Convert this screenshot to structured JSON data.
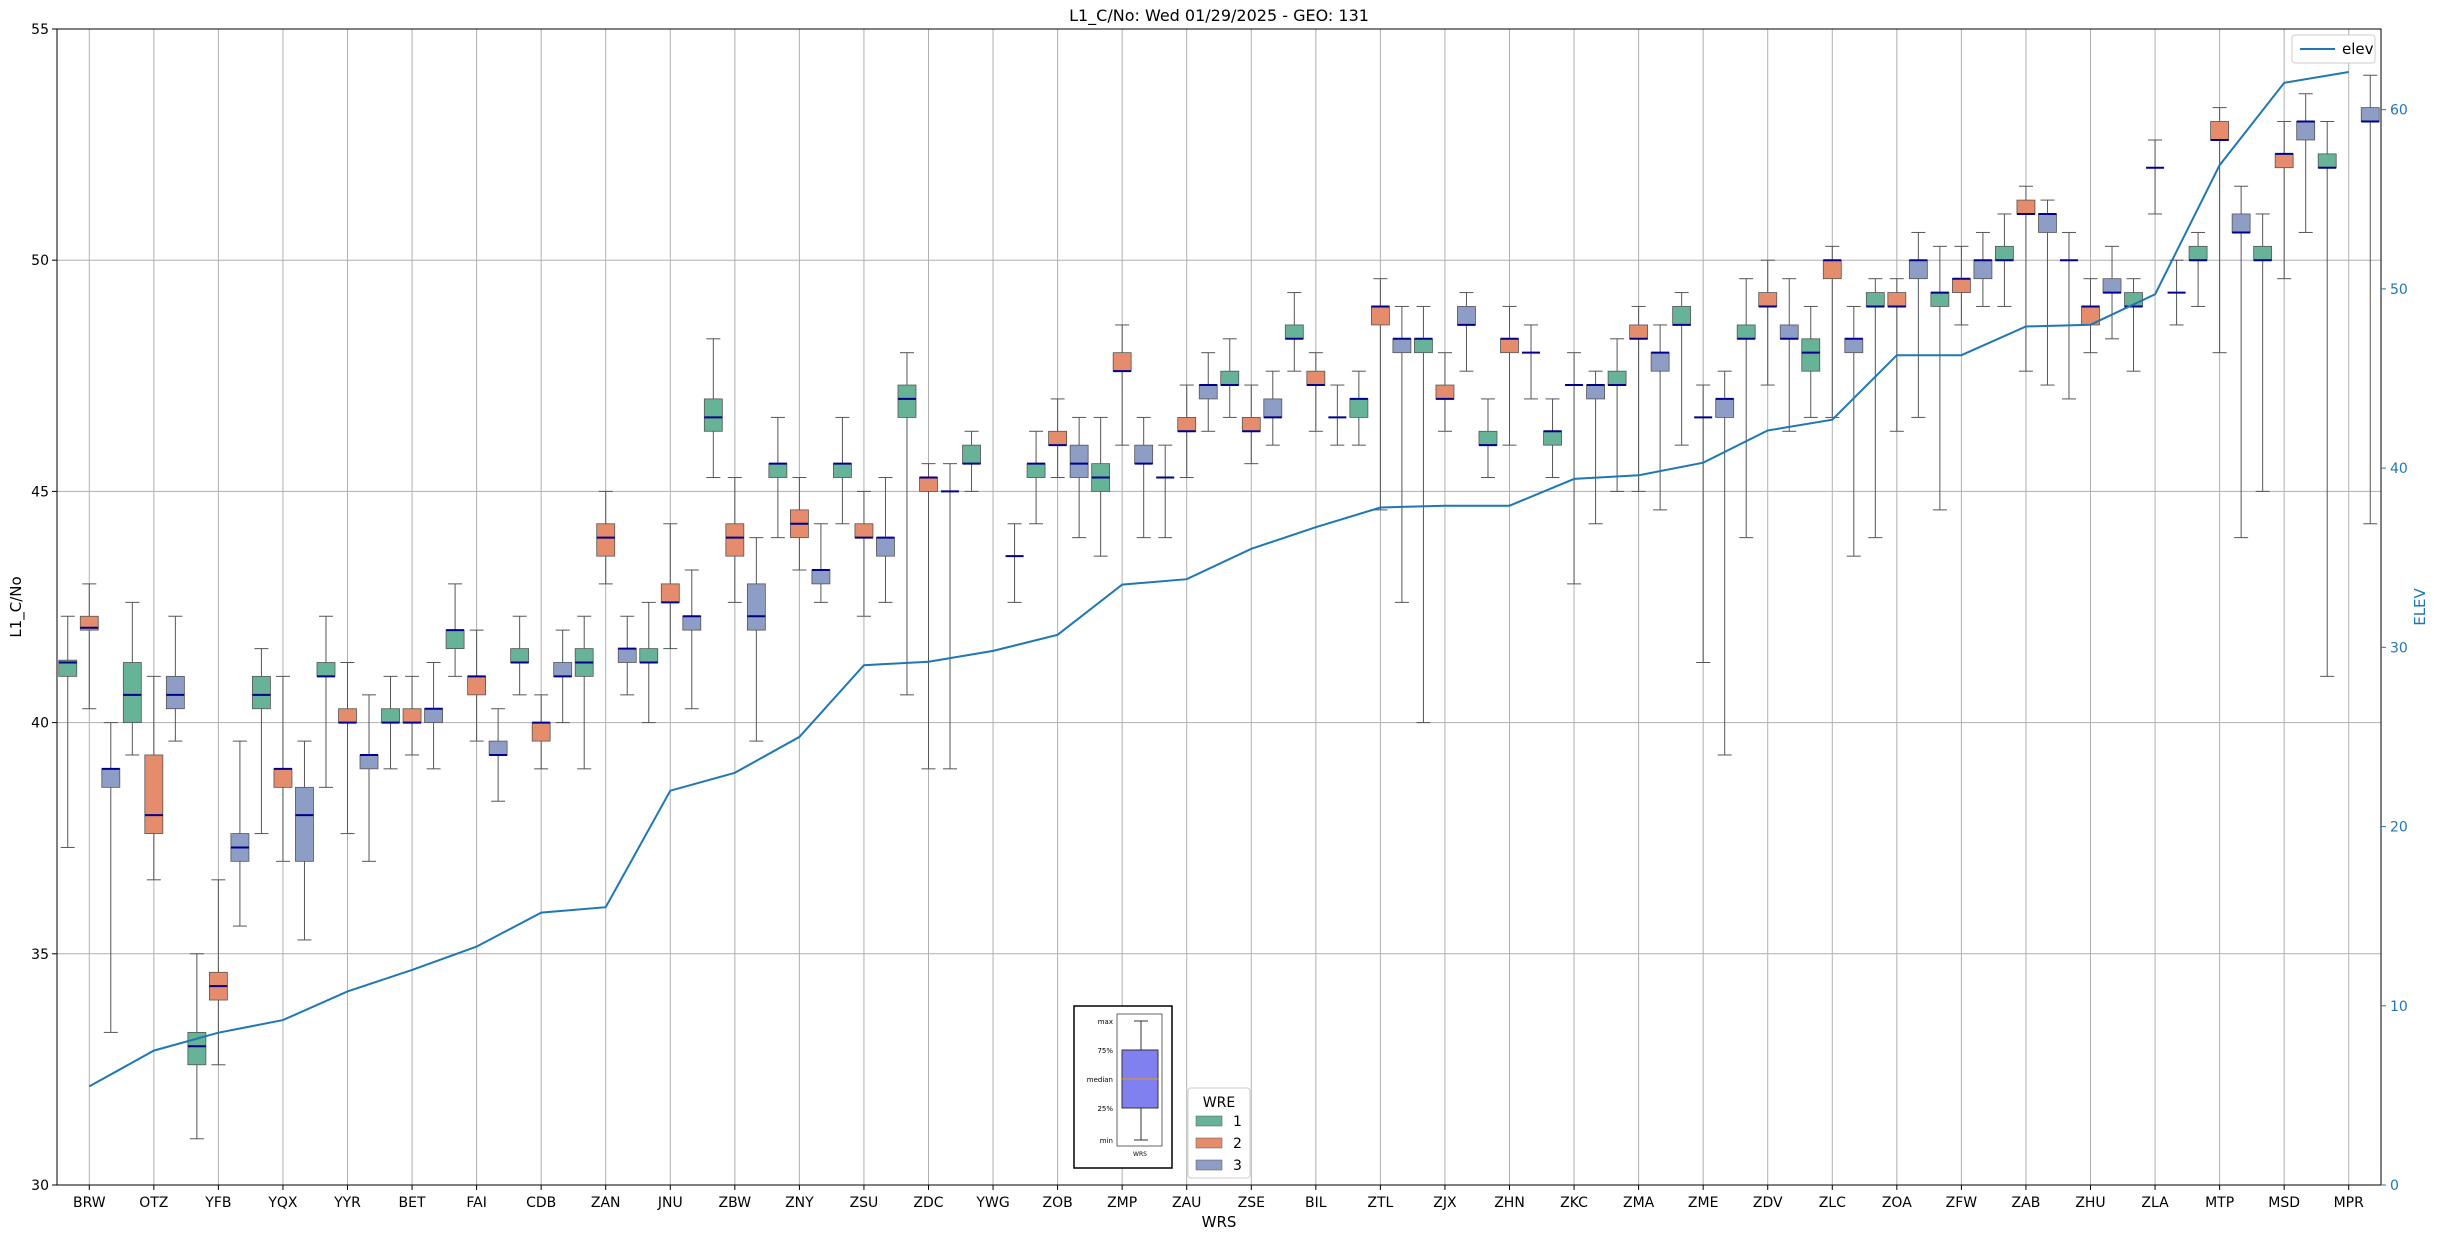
{
  "colors": {
    "wre1": "#66b398",
    "wre2": "#e58c6c",
    "wre3": "#8e9dc5",
    "elev": "#1f77b4",
    "median": "#00008b",
    "grid": "#b0b0b0",
    "whisker": "#555555"
  },
  "chart_data": {
    "type": "box",
    "title": "L1_C/No: Wed 01/29/2025 - GEO: 131",
    "xlabel": "WRS",
    "ylabel": "L1_C/No",
    "y2label": "ELEV",
    "ylim": [
      30,
      55
    ],
    "y2lim": [
      0,
      64.5
    ],
    "yticks": [
      "30",
      "35",
      "40",
      "45",
      "50",
      "55"
    ],
    "y2ticks": [
      "0",
      "10",
      "20",
      "30",
      "40",
      "50",
      "60"
    ],
    "categories": [
      "BRW",
      "OTZ",
      "YFB",
      "YQX",
      "YYR",
      "BET",
      "FAI",
      "CDB",
      "ZAN",
      "JNU",
      "ZBW",
      "ZNY",
      "ZSU",
      "ZDC",
      "YWG",
      "ZOB",
      "ZMP",
      "ZAU",
      "ZSE",
      "BIL",
      "ZTL",
      "ZJX",
      "ZHN",
      "ZKC",
      "ZMA",
      "ZME",
      "ZDV",
      "ZLC",
      "ZOA",
      "ZFW",
      "ZAB",
      "ZHU",
      "ZLA",
      "MTP",
      "MSD",
      "MPR"
    ],
    "elev_legend": "elev",
    "elev": [
      5.5,
      7.5,
      8.5,
      9.2,
      10.8,
      12.0,
      13.3,
      15.2,
      15.5,
      22.0,
      23.0,
      25.0,
      29.0,
      29.2,
      29.8,
      30.7,
      33.5,
      33.8,
      35.5,
      36.7,
      37.8,
      37.9,
      37.9,
      39.4,
      39.6,
      40.3,
      42.1,
      42.7,
      46.3,
      46.3,
      47.9,
      48.0,
      49.7,
      56.9,
      61.5,
      62.1
    ],
    "boxes": [
      {
        "site": "BRW",
        "wre": 1,
        "min": 37.3,
        "q1": 41.0,
        "median": 41.3,
        "q3": 41.35,
        "max": 42.3
      },
      {
        "site": "BRW",
        "wre": 2,
        "min": 40.3,
        "q1": 42.0,
        "median": 42.05,
        "q3": 42.3,
        "max": 43.0
      },
      {
        "site": "BRW",
        "wre": 3,
        "min": 33.3,
        "q1": 38.6,
        "median": 39.0,
        "q3": 39.0,
        "max": 40.0
      },
      {
        "site": "OTZ",
        "wre": 1,
        "min": 39.3,
        "q1": 40.0,
        "median": 40.6,
        "q3": 41.3,
        "max": 42.6
      },
      {
        "site": "OTZ",
        "wre": 2,
        "min": 36.6,
        "q1": 37.6,
        "median": 38.0,
        "q3": 39.3,
        "max": 41.0
      },
      {
        "site": "OTZ",
        "wre": 3,
        "min": 39.6,
        "q1": 40.3,
        "median": 40.6,
        "q3": 41.0,
        "max": 42.3
      },
      {
        "site": "YFB",
        "wre": 1,
        "min": 31.0,
        "q1": 32.6,
        "median": 33.0,
        "q3": 33.3,
        "max": 35.0
      },
      {
        "site": "YFB",
        "wre": 2,
        "min": 32.6,
        "q1": 34.0,
        "median": 34.3,
        "q3": 34.6,
        "max": 36.6
      },
      {
        "site": "YFB",
        "wre": 3,
        "min": 35.6,
        "q1": 37.0,
        "median": 37.3,
        "q3": 37.6,
        "max": 39.6
      },
      {
        "site": "YQX",
        "wre": 1,
        "min": 37.6,
        "q1": 40.3,
        "median": 40.6,
        "q3": 41.0,
        "max": 41.6
      },
      {
        "site": "YQX",
        "wre": 2,
        "min": 37.0,
        "q1": 38.6,
        "median": 39.0,
        "q3": 39.0,
        "max": 41.0
      },
      {
        "site": "YQX",
        "wre": 3,
        "min": 35.3,
        "q1": 37.0,
        "median": 38.0,
        "q3": 38.6,
        "max": 39.6
      },
      {
        "site": "YYR",
        "wre": 1,
        "min": 38.6,
        "q1": 41.0,
        "median": 41.0,
        "q3": 41.3,
        "max": 42.3
      },
      {
        "site": "YYR",
        "wre": 2,
        "min": 37.6,
        "q1": 40.0,
        "median": 40.0,
        "q3": 40.3,
        "max": 41.3
      },
      {
        "site": "YYR",
        "wre": 3,
        "min": 37.0,
        "q1": 39.0,
        "median": 39.3,
        "q3": 39.3,
        "max": 40.6
      },
      {
        "site": "BET",
        "wre": 1,
        "min": 39.0,
        "q1": 40.0,
        "median": 40.0,
        "q3": 40.3,
        "max": 41.0
      },
      {
        "site": "BET",
        "wre": 2,
        "min": 39.3,
        "q1": 40.0,
        "median": 40.0,
        "q3": 40.3,
        "max": 41.0
      },
      {
        "site": "BET",
        "wre": 3,
        "min": 39.0,
        "q1": 40.0,
        "median": 40.3,
        "q3": 40.3,
        "max": 41.3
      },
      {
        "site": "FAI",
        "wre": 1,
        "min": 41.0,
        "q1": 41.6,
        "median": 42.0,
        "q3": 42.0,
        "max": 43.0
      },
      {
        "site": "FAI",
        "wre": 2,
        "min": 39.6,
        "q1": 40.6,
        "median": 41.0,
        "q3": 41.0,
        "max": 42.0
      },
      {
        "site": "FAI",
        "wre": 3,
        "min": 38.3,
        "q1": 39.3,
        "median": 39.3,
        "q3": 39.6,
        "max": 40.3
      },
      {
        "site": "CDB",
        "wre": 1,
        "min": 40.6,
        "q1": 41.3,
        "median": 41.3,
        "q3": 41.6,
        "max": 42.3
      },
      {
        "site": "CDB",
        "wre": 2,
        "min": 39.0,
        "q1": 39.6,
        "median": 40.0,
        "q3": 40.0,
        "max": 40.6
      },
      {
        "site": "CDB",
        "wre": 3,
        "min": 40.0,
        "q1": 41.0,
        "median": 41.0,
        "q3": 41.3,
        "max": 42.0
      },
      {
        "site": "ZAN",
        "wre": 1,
        "min": 39.0,
        "q1": 41.0,
        "median": 41.3,
        "q3": 41.6,
        "max": 42.3
      },
      {
        "site": "ZAN",
        "wre": 2,
        "min": 43.0,
        "q1": 43.6,
        "median": 44.0,
        "q3": 44.3,
        "max": 45.0
      },
      {
        "site": "ZAN",
        "wre": 3,
        "min": 40.6,
        "q1": 41.3,
        "median": 41.6,
        "q3": 41.6,
        "max": 42.3
      },
      {
        "site": "JNU",
        "wre": 1,
        "min": 40.0,
        "q1": 41.3,
        "median": 41.3,
        "q3": 41.6,
        "max": 42.6
      },
      {
        "site": "JNU",
        "wre": 2,
        "min": 41.6,
        "q1": 42.6,
        "median": 42.6,
        "q3": 43.0,
        "max": 44.3
      },
      {
        "site": "JNU",
        "wre": 3,
        "min": 40.3,
        "q1": 42.0,
        "median": 42.3,
        "q3": 42.3,
        "max": 43.3
      },
      {
        "site": "ZBW",
        "wre": 1,
        "min": 45.3,
        "q1": 46.3,
        "median": 46.6,
        "q3": 47.0,
        "max": 48.3
      },
      {
        "site": "ZBW",
        "wre": 2,
        "min": 42.6,
        "q1": 43.6,
        "median": 44.0,
        "q3": 44.3,
        "max": 45.3
      },
      {
        "site": "ZBW",
        "wre": 3,
        "min": 39.6,
        "q1": 42.0,
        "median": 42.3,
        "q3": 43.0,
        "max": 44.0
      },
      {
        "site": "ZNY",
        "wre": 1,
        "min": 44.0,
        "q1": 45.3,
        "median": 45.6,
        "q3": 45.6,
        "max": 46.6
      },
      {
        "site": "ZNY",
        "wre": 2,
        "min": 43.3,
        "q1": 44.0,
        "median": 44.3,
        "q3": 44.6,
        "max": 45.3
      },
      {
        "site": "ZNY",
        "wre": 3,
        "min": 42.6,
        "q1": 43.0,
        "median": 43.3,
        "q3": 43.3,
        "max": 44.3
      },
      {
        "site": "ZSU",
        "wre": 1,
        "min": 44.3,
        "q1": 45.3,
        "median": 45.6,
        "q3": 45.6,
        "max": 46.6
      },
      {
        "site": "ZSU",
        "wre": 2,
        "min": 42.3,
        "q1": 44.0,
        "median": 44.0,
        "q3": 44.3,
        "max": 45.0
      },
      {
        "site": "ZSU",
        "wre": 3,
        "min": 42.6,
        "q1": 43.6,
        "median": 44.0,
        "q3": 44.0,
        "max": 45.3
      },
      {
        "site": "ZDC",
        "wre": 1,
        "min": 40.6,
        "q1": 46.6,
        "median": 47.0,
        "q3": 47.3,
        "max": 48.0
      },
      {
        "site": "ZDC",
        "wre": 2,
        "min": 39.0,
        "q1": 45.0,
        "median": 45.3,
        "q3": 45.3,
        "max": 45.6
      },
      {
        "site": "ZDC",
        "wre": 3,
        "min": 39.0,
        "q1": 45.0,
        "median": 45.0,
        "q3": 45.0,
        "max": 45.6
      },
      {
        "site": "YWG",
        "wre": 1,
        "min": 45.0,
        "q1": 45.6,
        "median": 45.6,
        "q3": 46.0,
        "max": 46.3
      },
      {
        "site": "YWG",
        "wre": 2,
        "min": null,
        "q1": null,
        "median": null,
        "q3": null,
        "max": null
      },
      {
        "site": "YWG",
        "wre": 3,
        "min": 42.6,
        "q1": 43.6,
        "median": 43.6,
        "q3": 43.6,
        "max": 44.3
      },
      {
        "site": "ZOB",
        "wre": 1,
        "min": 44.3,
        "q1": 45.3,
        "median": 45.6,
        "q3": 45.6,
        "max": 46.3
      },
      {
        "site": "ZOB",
        "wre": 2,
        "min": 45.3,
        "q1": 46.0,
        "median": 46.0,
        "q3": 46.3,
        "max": 47.0
      },
      {
        "site": "ZOB",
        "wre": 3,
        "min": 44.0,
        "q1": 45.3,
        "median": 45.6,
        "q3": 46.0,
        "max": 46.6
      },
      {
        "site": "ZMP",
        "wre": 1,
        "min": 43.6,
        "q1": 45.0,
        "median": 45.3,
        "q3": 45.6,
        "max": 46.6
      },
      {
        "site": "ZMP",
        "wre": 2,
        "min": 46.0,
        "q1": 47.6,
        "median": 47.6,
        "q3": 48.0,
        "max": 48.6
      },
      {
        "site": "ZMP",
        "wre": 3,
        "min": 44.0,
        "q1": 45.6,
        "median": 45.6,
        "q3": 46.0,
        "max": 46.6
      },
      {
        "site": "ZAU",
        "wre": 1,
        "min": 44.0,
        "q1": 45.3,
        "median": 45.3,
        "q3": 45.3,
        "max": 46.0
      },
      {
        "site": "ZAU",
        "wre": 2,
        "min": 45.3,
        "q1": 46.3,
        "median": 46.3,
        "q3": 46.6,
        "max": 47.3
      },
      {
        "site": "ZAU",
        "wre": 3,
        "min": 46.3,
        "q1": 47.0,
        "median": 47.3,
        "q3": 47.3,
        "max": 48.0
      },
      {
        "site": "ZSE",
        "wre": 1,
        "min": 46.6,
        "q1": 47.3,
        "median": 47.3,
        "q3": 47.6,
        "max": 48.3
      },
      {
        "site": "ZSE",
        "wre": 2,
        "min": 45.6,
        "q1": 46.3,
        "median": 46.3,
        "q3": 46.6,
        "max": 47.3
      },
      {
        "site": "ZSE",
        "wre": 3,
        "min": 46.0,
        "q1": 46.6,
        "median": 46.6,
        "q3": 47.0,
        "max": 47.6
      },
      {
        "site": "BIL",
        "wre": 1,
        "min": 47.6,
        "q1": 48.3,
        "median": 48.3,
        "q3": 48.6,
        "max": 49.3
      },
      {
        "site": "BIL",
        "wre": 2,
        "min": 46.3,
        "q1": 47.3,
        "median": 47.3,
        "q3": 47.6,
        "max": 48.0
      },
      {
        "site": "BIL",
        "wre": 3,
        "min": 46.0,
        "q1": 46.6,
        "median": 46.6,
        "q3": 46.6,
        "max": 47.3
      },
      {
        "site": "ZTL",
        "wre": 1,
        "min": 46.0,
        "q1": 46.6,
        "median": 47.0,
        "q3": 47.0,
        "max": 47.6
      },
      {
        "site": "ZTL",
        "wre": 2,
        "min": 44.6,
        "q1": 48.6,
        "median": 49.0,
        "q3": 49.0,
        "max": 49.6
      },
      {
        "site": "ZTL",
        "wre": 3,
        "min": 42.6,
        "q1": 48.0,
        "median": 48.3,
        "q3": 48.3,
        "max": 49.0
      },
      {
        "site": "ZJX",
        "wre": 1,
        "min": 40.0,
        "q1": 48.0,
        "median": 48.3,
        "q3": 48.3,
        "max": 49.0
      },
      {
        "site": "ZJX",
        "wre": 2,
        "min": 46.3,
        "q1": 47.0,
        "median": 47.0,
        "q3": 47.3,
        "max": 48.0
      },
      {
        "site": "ZJX",
        "wre": 3,
        "min": 47.6,
        "q1": 48.6,
        "median": 48.6,
        "q3": 49.0,
        "max": 49.3
      },
      {
        "site": "ZHN",
        "wre": 1,
        "min": 45.3,
        "q1": 46.0,
        "median": 46.0,
        "q3": 46.3,
        "max": 47.0
      },
      {
        "site": "ZHN",
        "wre": 2,
        "min": 46.0,
        "q1": 48.0,
        "median": 48.3,
        "q3": 48.3,
        "max": 49.0
      },
      {
        "site": "ZHN",
        "wre": 3,
        "min": 47.0,
        "q1": 48.0,
        "median": 48.0,
        "q3": 48.0,
        "max": 48.6
      },
      {
        "site": "ZKC",
        "wre": 1,
        "min": 45.3,
        "q1": 46.0,
        "median": 46.3,
        "q3": 46.3,
        "max": 47.0
      },
      {
        "site": "ZKC",
        "wre": 2,
        "min": 43.0,
        "q1": 47.3,
        "median": 47.3,
        "q3": 47.3,
        "max": 48.0
      },
      {
        "site": "ZKC",
        "wre": 3,
        "min": 44.3,
        "q1": 47.0,
        "median": 47.3,
        "q3": 47.3,
        "max": 47.6
      },
      {
        "site": "ZMA",
        "wre": 1,
        "min": 45.0,
        "q1": 47.3,
        "median": 47.3,
        "q3": 47.6,
        "max": 48.3
      },
      {
        "site": "ZMA",
        "wre": 2,
        "min": 45.0,
        "q1": 48.3,
        "median": 48.3,
        "q3": 48.6,
        "max": 49.0
      },
      {
        "site": "ZMA",
        "wre": 3,
        "min": 44.6,
        "q1": 47.6,
        "median": 48.0,
        "q3": 48.0,
        "max": 48.6
      },
      {
        "site": "ZME",
        "wre": 1,
        "min": 46.0,
        "q1": 48.6,
        "median": 48.6,
        "q3": 49.0,
        "max": 49.3
      },
      {
        "site": "ZME",
        "wre": 2,
        "min": 41.3,
        "q1": 46.6,
        "median": 46.6,
        "q3": 46.6,
        "max": 47.3
      },
      {
        "site": "ZME",
        "wre": 3,
        "min": 39.3,
        "q1": 46.6,
        "median": 47.0,
        "q3": 47.0,
        "max": 47.6
      },
      {
        "site": "ZDV",
        "wre": 1,
        "min": 44.0,
        "q1": 48.3,
        "median": 48.3,
        "q3": 48.6,
        "max": 49.6
      },
      {
        "site": "ZDV",
        "wre": 2,
        "min": 47.3,
        "q1": 49.0,
        "median": 49.0,
        "q3": 49.3,
        "max": 50.0
      },
      {
        "site": "ZDV",
        "wre": 3,
        "min": 46.3,
        "q1": 48.3,
        "median": 48.3,
        "q3": 48.6,
        "max": 49.6
      },
      {
        "site": "ZLC",
        "wre": 1,
        "min": 46.6,
        "q1": 47.6,
        "median": 48.0,
        "q3": 48.3,
        "max": 49.0
      },
      {
        "site": "ZLC",
        "wre": 2,
        "min": 46.6,
        "q1": 49.6,
        "median": 50.0,
        "q3": 50.0,
        "max": 50.3
      },
      {
        "site": "ZLC",
        "wre": 3,
        "min": 43.6,
        "q1": 48.0,
        "median": 48.3,
        "q3": 48.3,
        "max": 49.0
      },
      {
        "site": "ZOA",
        "wre": 1,
        "min": 44.0,
        "q1": 49.0,
        "median": 49.0,
        "q3": 49.3,
        "max": 49.6
      },
      {
        "site": "ZOA",
        "wre": 2,
        "min": 46.3,
        "q1": 49.0,
        "median": 49.0,
        "q3": 49.3,
        "max": 49.6
      },
      {
        "site": "ZOA",
        "wre": 3,
        "min": 46.6,
        "q1": 49.6,
        "median": 50.0,
        "q3": 50.0,
        "max": 50.6
      },
      {
        "site": "ZFW",
        "wre": 1,
        "min": 44.6,
        "q1": 49.0,
        "median": 49.3,
        "q3": 49.3,
        "max": 50.3
      },
      {
        "site": "ZFW",
        "wre": 2,
        "min": 48.6,
        "q1": 49.3,
        "median": 49.6,
        "q3": 49.6,
        "max": 50.3
      },
      {
        "site": "ZFW",
        "wre": 3,
        "min": 49.0,
        "q1": 49.6,
        "median": 50.0,
        "q3": 50.0,
        "max": 50.6
      },
      {
        "site": "ZAB",
        "wre": 1,
        "min": 49.0,
        "q1": 50.0,
        "median": 50.0,
        "q3": 50.3,
        "max": 51.0
      },
      {
        "site": "ZAB",
        "wre": 2,
        "min": 47.6,
        "q1": 51.0,
        "median": 51.0,
        "q3": 51.3,
        "max": 51.6
      },
      {
        "site": "ZAB",
        "wre": 3,
        "min": 47.3,
        "q1": 50.6,
        "median": 51.0,
        "q3": 51.0,
        "max": 51.3
      },
      {
        "site": "ZHU",
        "wre": 1,
        "min": 47.0,
        "q1": 50.0,
        "median": 50.0,
        "q3": 50.0,
        "max": 50.6
      },
      {
        "site": "ZHU",
        "wre": 2,
        "min": 48.0,
        "q1": 48.6,
        "median": 49.0,
        "q3": 49.0,
        "max": 49.6
      },
      {
        "site": "ZHU",
        "wre": 3,
        "min": 48.3,
        "q1": 49.3,
        "median": 49.3,
        "q3": 49.6,
        "max": 50.3
      },
      {
        "site": "ZLA",
        "wre": 1,
        "min": 47.6,
        "q1": 49.0,
        "median": 49.0,
        "q3": 49.3,
        "max": 49.6
      },
      {
        "site": "ZLA",
        "wre": 2,
        "min": 51.0,
        "q1": 52.0,
        "median": 52.0,
        "q3": 52.0,
        "max": 52.6
      },
      {
        "site": "ZLA",
        "wre": 3,
        "min": 48.6,
        "q1": 49.3,
        "median": 49.3,
        "q3": 49.3,
        "max": 50.0
      },
      {
        "site": "MTP",
        "wre": 1,
        "min": 49.0,
        "q1": 50.0,
        "median": 50.0,
        "q3": 50.3,
        "max": 50.6
      },
      {
        "site": "MTP",
        "wre": 2,
        "min": 48.0,
        "q1": 52.6,
        "median": 52.6,
        "q3": 53.0,
        "max": 53.3
      },
      {
        "site": "MTP",
        "wre": 3,
        "min": 44.0,
        "q1": 50.6,
        "median": 50.6,
        "q3": 51.0,
        "max": 51.6
      },
      {
        "site": "MSD",
        "wre": 1,
        "min": 45.0,
        "q1": 50.0,
        "median": 50.0,
        "q3": 50.3,
        "max": 51.0
      },
      {
        "site": "MSD",
        "wre": 2,
        "min": 49.6,
        "q1": 52.0,
        "median": 52.3,
        "q3": 52.3,
        "max": 53.0
      },
      {
        "site": "MSD",
        "wre": 3,
        "min": 50.6,
        "q1": 52.6,
        "median": 53.0,
        "q3": 53.0,
        "max": 53.6
      },
      {
        "site": "MPR",
        "wre": 1,
        "min": 41.0,
        "q1": 52.0,
        "median": 52.0,
        "q3": 52.3,
        "max": 53.0
      },
      {
        "site": "MPR",
        "wre": 2,
        "min": null,
        "q1": null,
        "median": null,
        "q3": null,
        "max": null
      },
      {
        "site": "MPR",
        "wre": 3,
        "min": 44.3,
        "q1": 53.0,
        "median": 53.0,
        "q3": 53.3,
        "max": 54.0
      }
    ],
    "legend_elev_position": "top-right",
    "legend_wre": {
      "title": "WRE",
      "entries": [
        "1",
        "2",
        "3"
      ]
    },
    "key_box": {
      "labels": [
        "max",
        "75%",
        "median",
        "25%",
        "min"
      ],
      "xlabel": "WRS"
    }
  }
}
